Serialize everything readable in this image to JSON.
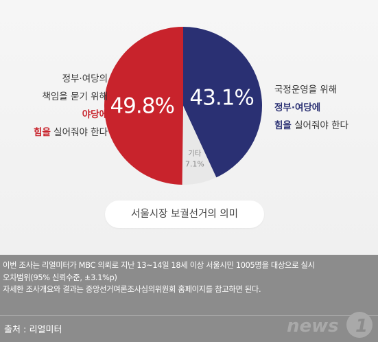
{
  "left_note": {
    "line1": "정부·여당의",
    "line2": "책임을 묻기 위해",
    "line3_em": "야당에",
    "line4_em": "힘을",
    "line4_rest": " 실어줘야 한다"
  },
  "right_note": {
    "line1": "국정운영을 위해",
    "line2_em": "정부·여당에",
    "line3_em": "힘을",
    "line3_rest": " 실어줘야 한다"
  },
  "title": "서울시장 보궐선거의 의미",
  "methodology": [
    "이번 조사는 리얼미터가 MBC 의뢰로 지난 13~14일 18세 이상 서울시민 1005명을 대상으로 실시",
    "오차범위(95% 신뢰수준, ±3.1%p)",
    "자세한 조사개요와 결과는 중앙선거여론조사심의위원회 홈페이지를 참고하면 된다."
  ],
  "source": "출처 : 리얼미터",
  "logo": {
    "text": "news",
    "mark": "1"
  },
  "colors": {
    "opposition": "#c8232c",
    "government": "#2a3073",
    "other": "#e8e8e8"
  },
  "chart_data": {
    "type": "pie",
    "title": "서울시장 보궐선거의 의미",
    "slices": [
      {
        "label": "정부·여당에 힘을 실어줘야 한다",
        "value": 43.1,
        "display": "43.1%",
        "color": "#2a3073"
      },
      {
        "label": "기타",
        "value": 7.1,
        "display": "7.1%",
        "color": "#e8e8e8"
      },
      {
        "label": "야당에 힘을 실어줘야 한다",
        "value": 49.8,
        "display": "49.8%",
        "color": "#c8232c"
      }
    ]
  }
}
